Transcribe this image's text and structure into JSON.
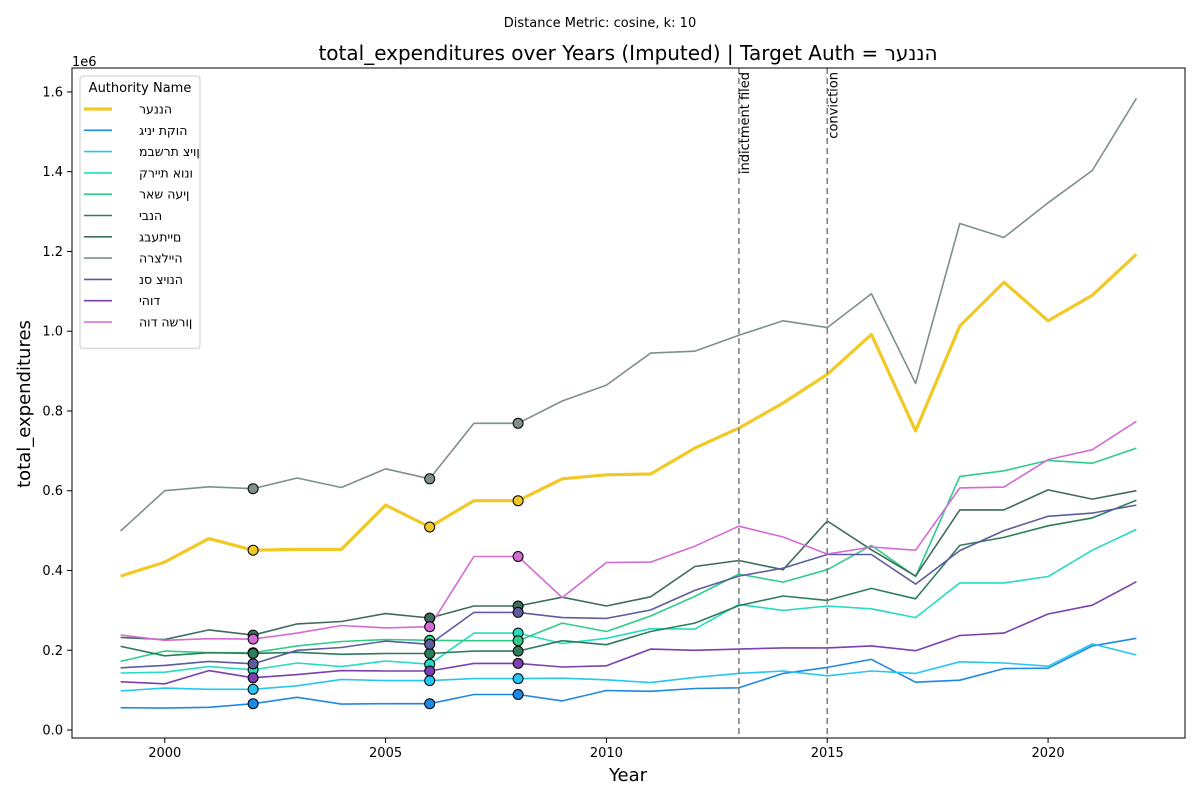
{
  "chart_data": {
    "type": "line",
    "suptitle": "Distance Metric: cosine, k: 10",
    "title": "total_expenditures over Years (Imputed) | Target Auth = הננער",
    "xlabel": "Year",
    "ylabel": "total_expenditures",
    "y_offset_label": "1e6",
    "xlim": [
      1997.9,
      2023.1
    ],
    "ylim": [
      -0.02,
      1.66
    ],
    "x_ticks": [
      2000,
      2005,
      2010,
      2015,
      2020
    ],
    "y_ticks": [
      "0.0",
      "0.2",
      "0.4",
      "0.6",
      "0.8",
      "1.0",
      "1.2",
      "1.4",
      "1.6"
    ],
    "y_scale": "millions",
    "x": [
      1999,
      2000,
      2001,
      2002,
      2003,
      2004,
      2005,
      2006,
      2007,
      2008,
      2009,
      2010,
      2011,
      2012,
      2013,
      2014,
      2015,
      2016,
      2017,
      2018,
      2019,
      2020,
      2021,
      2022
    ],
    "legend_title": "Authority Name",
    "legend_position": "upper-left",
    "grid": false,
    "imputed_years": [
      2002,
      2006,
      2008
    ],
    "vlines": [
      {
        "x": 2013,
        "label": "indictment filed"
      },
      {
        "x": 2015,
        "label": "conviction"
      }
    ],
    "series": [
      {
        "name": "הננער",
        "color": "#f2c924",
        "width": 3.2,
        "values": [
          0.386,
          0.421,
          0.48,
          0.451,
          0.453,
          0.453,
          0.564,
          0.509,
          0.575,
          0.575,
          0.63,
          0.64,
          0.642,
          0.707,
          0.757,
          0.82,
          0.892,
          0.992,
          0.75,
          1.013,
          1.123,
          1.026,
          1.09,
          1.193
        ]
      },
      {
        "name": "הוקת יניג",
        "color": "#1e88e5",
        "width": 1.6,
        "values": [
          0.056,
          0.055,
          0.057,
          0.066,
          0.082,
          0.065,
          0.066,
          0.066,
          0.089,
          0.089,
          0.073,
          0.099,
          0.097,
          0.104,
          0.106,
          0.142,
          0.157,
          0.177,
          0.12,
          0.125,
          0.154,
          0.155,
          0.211,
          0.23
        ]
      },
      {
        "name": "ןויצ תרשבמ",
        "color": "#26c6f0",
        "width": 1.6,
        "values": [
          0.098,
          0.105,
          0.102,
          0.102,
          0.111,
          0.127,
          0.124,
          0.124,
          0.129,
          0.129,
          0.13,
          0.126,
          0.119,
          0.132,
          0.142,
          0.148,
          0.136,
          0.148,
          0.142,
          0.171,
          0.168,
          0.16,
          0.216,
          0.188
        ]
      },
      {
        "name": "ונוא תיירק",
        "color": "#26dcc0",
        "width": 1.6,
        "values": [
          0.143,
          0.145,
          0.159,
          0.151,
          0.168,
          0.159,
          0.173,
          0.165,
          0.243,
          0.243,
          0.217,
          0.23,
          0.254,
          0.253,
          0.315,
          0.3,
          0.311,
          0.304,
          0.282,
          0.369,
          0.369,
          0.385,
          0.451,
          0.503
        ]
      },
      {
        "name": "ןיעה שאר",
        "color": "#2fcc8a",
        "width": 1.6,
        "values": [
          0.172,
          0.198,
          0.194,
          0.194,
          0.211,
          0.222,
          0.227,
          0.225,
          0.224,
          0.224,
          0.268,
          0.247,
          0.286,
          0.335,
          0.391,
          0.371,
          0.402,
          0.463,
          0.385,
          0.636,
          0.65,
          0.676,
          0.669,
          0.707
        ]
      },
      {
        "name": "הנבי",
        "color": "#2e7d5a",
        "width": 1.6,
        "values": [
          0.21,
          0.186,
          0.194,
          0.192,
          0.195,
          0.19,
          0.192,
          0.192,
          0.198,
          0.198,
          0.224,
          0.214,
          0.247,
          0.268,
          0.312,
          0.336,
          0.325,
          0.355,
          0.329,
          0.463,
          0.483,
          0.512,
          0.532,
          0.576
        ]
      },
      {
        "name": "םייתעבג",
        "color": "#3f6b5c",
        "width": 1.6,
        "values": [
          0.232,
          0.227,
          0.251,
          0.238,
          0.266,
          0.272,
          0.292,
          0.281,
          0.311,
          0.311,
          0.333,
          0.311,
          0.334,
          0.41,
          0.425,
          0.402,
          0.524,
          0.452,
          0.386,
          0.552,
          0.552,
          0.602,
          0.579,
          0.6
        ]
      },
      {
        "name": "היילצרה",
        "color": "#7f8f8c",
        "width": 1.6,
        "values": [
          0.499,
          0.6,
          0.61,
          0.605,
          0.632,
          0.608,
          0.655,
          0.63,
          0.769,
          0.769,
          0.825,
          0.865,
          0.945,
          0.95,
          0.99,
          1.026,
          1.009,
          1.094,
          0.869,
          1.27,
          1.235,
          1.322,
          1.403,
          1.584
        ]
      },
      {
        "name": "הנויצ סנ",
        "color": "#5c5c9e",
        "width": 1.6,
        "values": [
          0.156,
          0.162,
          0.172,
          0.166,
          0.2,
          0.207,
          0.223,
          0.215,
          0.295,
          0.295,
          0.282,
          0.28,
          0.301,
          0.35,
          0.386,
          0.406,
          0.44,
          0.44,
          0.366,
          0.45,
          0.5,
          0.536,
          0.544,
          0.564
        ]
      },
      {
        "name": "דוהי",
        "color": "#7b3fb0",
        "width": 1.6,
        "values": [
          0.121,
          0.116,
          0.149,
          0.131,
          0.139,
          0.149,
          0.148,
          0.148,
          0.167,
          0.167,
          0.158,
          0.161,
          0.203,
          0.2,
          0.203,
          0.206,
          0.206,
          0.211,
          0.199,
          0.237,
          0.243,
          0.291,
          0.313,
          0.372
        ]
      },
      {
        "name": "ןורשה דוה",
        "color": "#d46ad4",
        "width": 1.6,
        "values": [
          0.238,
          0.225,
          0.229,
          0.228,
          0.243,
          0.262,
          0.256,
          0.259,
          0.435,
          0.435,
          0.332,
          0.42,
          0.421,
          0.461,
          0.511,
          0.484,
          0.441,
          0.459,
          0.451,
          0.607,
          0.609,
          0.678,
          0.703,
          0.774
        ]
      }
    ]
  }
}
